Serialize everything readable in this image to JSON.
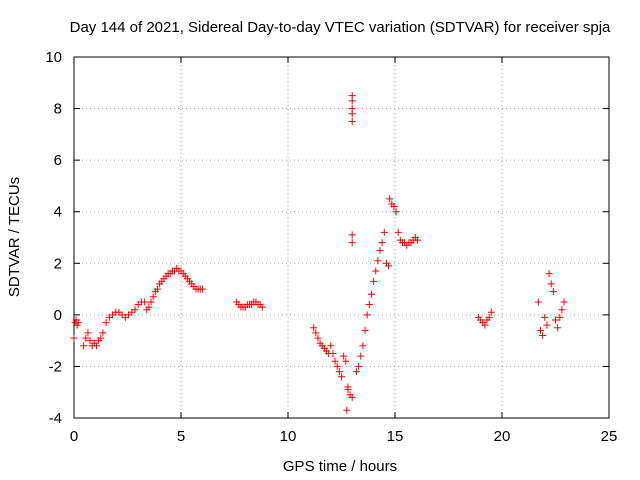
{
  "chart_data": {
    "type": "scatter",
    "title": "Day 144 of 2021, Sidereal Day-to-day VTEC variation (SDTVAR) for receiver spja",
    "xlabel": "GPS time / hours",
    "ylabel": "SDTVAR / TECUs",
    "xlim": [
      0,
      25
    ],
    "ylim": [
      -4,
      10
    ],
    "x_ticks": [
      "0",
      "5",
      "10",
      "15",
      "20",
      "25"
    ],
    "y_ticks": [
      "-4",
      "-2",
      "0",
      "2",
      "4",
      "6",
      "8",
      "10"
    ],
    "grid": true,
    "marker": "+",
    "color": "#ff0000",
    "segments": [
      {
        "x": [
          0.0,
          0.05,
          0.1,
          0.15,
          0.2
        ],
        "y": [
          -0.9,
          -0.3,
          -0.2,
          -0.4,
          -0.3
        ]
      },
      {
        "x": [
          0.45,
          0.55,
          0.65,
          0.75,
          0.85,
          0.95,
          1.05,
          1.15,
          1.25,
          1.35,
          1.5,
          1.65,
          1.8,
          1.95,
          2.1,
          2.25,
          2.4,
          2.55,
          2.7,
          2.85,
          3.0,
          3.15,
          3.3
        ],
        "y": [
          -1.2,
          -0.9,
          -0.7,
          -1.0,
          -1.2,
          -1.1,
          -1.2,
          -1.0,
          -0.9,
          -0.7,
          -0.3,
          -0.1,
          0.0,
          0.1,
          0.1,
          0.0,
          -0.1,
          0.0,
          0.1,
          0.2,
          0.4,
          0.5,
          0.5
        ]
      },
      {
        "x": [
          3.4,
          3.5,
          3.6,
          3.7,
          3.8,
          3.9,
          4.0,
          4.1,
          4.2,
          4.3,
          4.4,
          4.5,
          4.6,
          4.7,
          4.8,
          4.9,
          5.0,
          5.1,
          5.2,
          5.3,
          5.4,
          5.5,
          5.6,
          5.7,
          5.8,
          5.9,
          6.0
        ],
        "y": [
          0.2,
          0.3,
          0.5,
          0.7,
          0.9,
          1.0,
          1.2,
          1.3,
          1.4,
          1.5,
          1.6,
          1.6,
          1.7,
          1.7,
          1.8,
          1.7,
          1.7,
          1.6,
          1.5,
          1.4,
          1.3,
          1.2,
          1.1,
          1.0,
          1.0,
          1.0,
          1.0
        ]
      },
      {
        "x": [
          7.6,
          7.7,
          7.8,
          7.9,
          8.0,
          8.1,
          8.2,
          8.3,
          8.4,
          8.5,
          8.6,
          8.7,
          8.8
        ],
        "y": [
          0.5,
          0.4,
          0.3,
          0.3,
          0.3,
          0.4,
          0.4,
          0.4,
          0.5,
          0.5,
          0.4,
          0.4,
          0.3
        ]
      },
      {
        "x": [
          11.2,
          11.3,
          11.4,
          11.5,
          11.6,
          11.7,
          11.8,
          11.9,
          12.0,
          12.1,
          12.2,
          12.3,
          12.4,
          12.5,
          12.6,
          12.7,
          12.8,
          12.9,
          13.0
        ],
        "y": [
          -0.5,
          -0.7,
          -0.9,
          -1.1,
          -1.2,
          -1.3,
          -1.4,
          -1.5,
          -1.2,
          -1.5,
          -1.8,
          -2.0,
          -2.2,
          -2.4,
          -1.6,
          -1.8,
          -2.8,
          -3.1,
          -3.2
        ]
      },
      {
        "x": [
          12.75,
          12.8,
          13.0,
          13.0,
          13.0,
          13.0,
          13.0,
          13.0,
          13.0
        ],
        "y": [
          -3.7,
          -2.9,
          2.8,
          3.1,
          7.5,
          7.8,
          8.0,
          8.3,
          8.5
        ]
      },
      {
        "x": [
          13.2,
          13.3,
          13.4,
          13.5,
          13.6,
          13.7,
          13.8,
          13.9,
          14.0,
          14.1,
          14.2,
          14.3,
          14.4,
          14.5,
          14.6,
          14.7
        ],
        "y": [
          -2.2,
          -2.0,
          -1.6,
          -1.2,
          -0.6,
          0.0,
          0.4,
          0.8,
          1.3,
          1.7,
          2.1,
          2.5,
          2.8,
          3.2,
          2.0,
          1.9
        ]
      },
      {
        "x": [
          14.75,
          14.85,
          14.95,
          15.05,
          15.15,
          15.25,
          15.35,
          15.45,
          15.55,
          15.65,
          15.75,
          15.85,
          15.95,
          16.05
        ],
        "y": [
          4.5,
          4.3,
          4.2,
          4.0,
          3.2,
          2.9,
          2.8,
          2.8,
          2.7,
          2.8,
          2.8,
          2.9,
          3.0,
          2.9
        ]
      },
      {
        "x": [
          18.9,
          19.0,
          19.1,
          19.2,
          19.3,
          19.4,
          19.5
        ],
        "y": [
          -0.1,
          -0.2,
          -0.3,
          -0.4,
          -0.2,
          -0.1,
          0.1
        ]
      },
      {
        "x": [
          21.7,
          21.8,
          21.9,
          22.0,
          22.1,
          22.2,
          22.3,
          22.4,
          22.5,
          22.6,
          22.7,
          22.8,
          22.9
        ],
        "y": [
          0.5,
          -0.6,
          -0.8,
          -0.1,
          -0.4,
          1.6,
          1.2,
          0.9,
          -0.2,
          -0.5,
          -0.1,
          0.2,
          0.5
        ]
      }
    ]
  }
}
